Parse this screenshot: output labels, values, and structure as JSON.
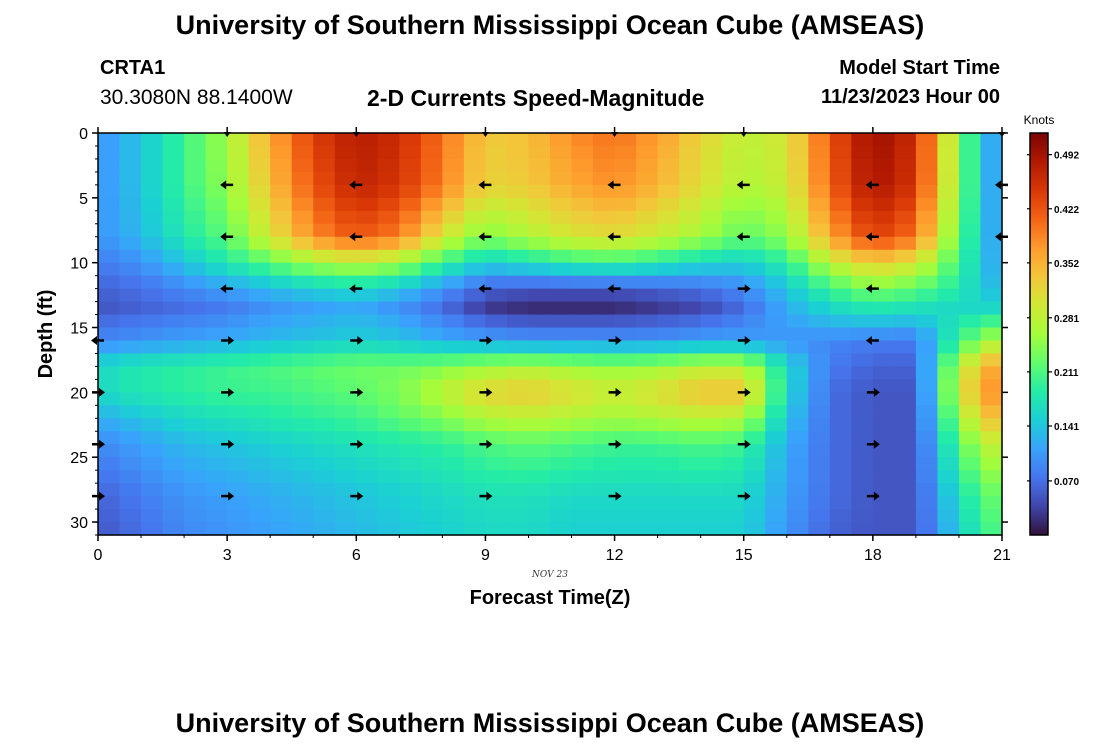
{
  "header": {
    "title": "University of Southern Mississippi Ocean Cube (AMSEAS)",
    "station": "CRTA1",
    "coordinates": "30.3080N  88.1400W",
    "subtitle": "2-D Currents Speed-Magnitude",
    "model_start_label": "Model Start Time",
    "model_start_value": "11/23/2023 Hour 00"
  },
  "footer": {
    "title": "University of Southern Mississippi Ocean Cube (AMSEAS)"
  },
  "chart_data": {
    "type": "heatmap",
    "title": "2-D Currents Speed-Magnitude",
    "xlabel": "Forecast Time(Z)",
    "ylabel": "Depth (ft)",
    "date_label": "NOV 23",
    "xlim": [
      0,
      21
    ],
    "ylim": [
      0,
      31
    ],
    "x_ticks": [
      0,
      3,
      6,
      9,
      12,
      15,
      18,
      21
    ],
    "y_ticks": [
      0,
      5,
      10,
      15,
      20,
      25,
      30
    ],
    "colorbar": {
      "label": "Knots",
      "min": 0.0,
      "max": 0.52,
      "ticks": [
        "0.492",
        "0.422",
        "0.352",
        "0.281",
        "0.211",
        "0.141",
        "0.070"
      ],
      "tick_values": [
        0.492,
        0.422,
        0.352,
        0.281,
        0.211,
        0.141,
        0.07
      ],
      "colors": [
        "#30123b",
        "#4145ab",
        "#4675ed",
        "#39a2fc",
        "#1bcfd4",
        "#24eca6",
        "#61fc6c",
        "#a4fc3b",
        "#d1e834",
        "#f3c63a",
        "#fe9b2d",
        "#f36315",
        "#d93806",
        "#b11901",
        "#7a0402"
      ]
    },
    "speed_field": {
      "note": "approximate current speed (knots) as function of forecast hour and depth (ft)",
      "hours": [
        0,
        1,
        2,
        3,
        4,
        5,
        6,
        7,
        8,
        9,
        10,
        11,
        12,
        13,
        14,
        15,
        16,
        17,
        18,
        19,
        20,
        21
      ],
      "depths": [
        0,
        4,
        8,
        10,
        12,
        13.5,
        16,
        18,
        20,
        22,
        24,
        28,
        31
      ],
      "speeds": [
        [
          0.1,
          0.14,
          0.2,
          0.26,
          0.36,
          0.44,
          0.48,
          0.46,
          0.4,
          0.33,
          0.34,
          0.38,
          0.4,
          0.37,
          0.32,
          0.28,
          0.3,
          0.42,
          0.5,
          0.46,
          0.24,
          0.08
        ],
        [
          0.1,
          0.14,
          0.2,
          0.25,
          0.34,
          0.42,
          0.47,
          0.45,
          0.39,
          0.32,
          0.33,
          0.36,
          0.38,
          0.35,
          0.31,
          0.27,
          0.29,
          0.41,
          0.49,
          0.45,
          0.24,
          0.08
        ],
        [
          0.1,
          0.13,
          0.18,
          0.22,
          0.3,
          0.38,
          0.42,
          0.39,
          0.3,
          0.24,
          0.27,
          0.3,
          0.31,
          0.29,
          0.26,
          0.22,
          0.25,
          0.36,
          0.44,
          0.4,
          0.22,
          0.09
        ],
        [
          0.08,
          0.1,
          0.14,
          0.18,
          0.22,
          0.26,
          0.28,
          0.26,
          0.2,
          0.15,
          0.17,
          0.19,
          0.2,
          0.18,
          0.16,
          0.15,
          0.19,
          0.28,
          0.33,
          0.3,
          0.2,
          0.1
        ],
        [
          0.06,
          0.07,
          0.09,
          0.11,
          0.13,
          0.15,
          0.16,
          0.14,
          0.1,
          0.06,
          0.05,
          0.05,
          0.05,
          0.06,
          0.07,
          0.09,
          0.14,
          0.2,
          0.24,
          0.22,
          0.18,
          0.12
        ],
        [
          0.05,
          0.06,
          0.07,
          0.08,
          0.1,
          0.11,
          0.12,
          0.1,
          0.07,
          0.03,
          0.02,
          0.02,
          0.02,
          0.03,
          0.04,
          0.07,
          0.12,
          0.16,
          0.18,
          0.17,
          0.16,
          0.16
        ],
        [
          0.09,
          0.1,
          0.11,
          0.12,
          0.13,
          0.14,
          0.15,
          0.14,
          0.12,
          0.11,
          0.1,
          0.1,
          0.1,
          0.1,
          0.11,
          0.11,
          0.1,
          0.09,
          0.08,
          0.08,
          0.2,
          0.28
        ],
        [
          0.16,
          0.18,
          0.19,
          0.2,
          0.21,
          0.22,
          0.23,
          0.23,
          0.24,
          0.26,
          0.27,
          0.26,
          0.25,
          0.26,
          0.28,
          0.28,
          0.16,
          0.08,
          0.06,
          0.06,
          0.28,
          0.38
        ],
        [
          0.16,
          0.18,
          0.19,
          0.2,
          0.2,
          0.21,
          0.22,
          0.24,
          0.28,
          0.32,
          0.33,
          0.31,
          0.29,
          0.31,
          0.34,
          0.34,
          0.16,
          0.07,
          0.05,
          0.05,
          0.3,
          0.4
        ],
        [
          0.12,
          0.14,
          0.16,
          0.17,
          0.18,
          0.19,
          0.2,
          0.22,
          0.24,
          0.27,
          0.28,
          0.27,
          0.26,
          0.27,
          0.28,
          0.27,
          0.14,
          0.07,
          0.05,
          0.05,
          0.26,
          0.36
        ],
        [
          0.09,
          0.11,
          0.13,
          0.14,
          0.15,
          0.16,
          0.17,
          0.18,
          0.19,
          0.21,
          0.22,
          0.21,
          0.2,
          0.2,
          0.21,
          0.2,
          0.12,
          0.07,
          0.05,
          0.05,
          0.22,
          0.3
        ],
        [
          0.06,
          0.08,
          0.1,
          0.11,
          0.12,
          0.13,
          0.14,
          0.15,
          0.16,
          0.17,
          0.17,
          0.16,
          0.16,
          0.16,
          0.16,
          0.16,
          0.11,
          0.07,
          0.05,
          0.05,
          0.17,
          0.24
        ],
        [
          0.05,
          0.07,
          0.09,
          0.1,
          0.11,
          0.12,
          0.13,
          0.14,
          0.15,
          0.16,
          0.16,
          0.15,
          0.15,
          0.15,
          0.15,
          0.15,
          0.1,
          0.06,
          0.05,
          0.05,
          0.15,
          0.22
        ]
      ]
    },
    "vectors": [
      {
        "hour": 3,
        "depth": 0,
        "dir": "down"
      },
      {
        "hour": 6,
        "depth": 0,
        "dir": "down"
      },
      {
        "hour": 9,
        "depth": 0,
        "dir": "down"
      },
      {
        "hour": 12,
        "depth": 0,
        "dir": "down"
      },
      {
        "hour": 15,
        "depth": 0,
        "dir": "down"
      },
      {
        "hour": 21,
        "depth": 0,
        "dir": "down"
      },
      {
        "hour": 3,
        "depth": 4,
        "dir": "left"
      },
      {
        "hour": 6,
        "depth": 4,
        "dir": "left"
      },
      {
        "hour": 9,
        "depth": 4,
        "dir": "left"
      },
      {
        "hour": 12,
        "depth": 4,
        "dir": "left"
      },
      {
        "hour": 15,
        "depth": 4,
        "dir": "left"
      },
      {
        "hour": 18,
        "depth": 4,
        "dir": "left"
      },
      {
        "hour": 21,
        "depth": 4,
        "dir": "left"
      },
      {
        "hour": 3,
        "depth": 8,
        "dir": "left"
      },
      {
        "hour": 6,
        "depth": 8,
        "dir": "left"
      },
      {
        "hour": 9,
        "depth": 8,
        "dir": "left"
      },
      {
        "hour": 12,
        "depth": 8,
        "dir": "left"
      },
      {
        "hour": 15,
        "depth": 8,
        "dir": "left"
      },
      {
        "hour": 18,
        "depth": 8,
        "dir": "left"
      },
      {
        "hour": 21,
        "depth": 8,
        "dir": "left"
      },
      {
        "hour": 3,
        "depth": 12,
        "dir": "left"
      },
      {
        "hour": 6,
        "depth": 12,
        "dir": "left"
      },
      {
        "hour": 9,
        "depth": 12,
        "dir": "left"
      },
      {
        "hour": 12,
        "depth": 12,
        "dir": "left"
      },
      {
        "hour": 15,
        "depth": 12,
        "dir": "right"
      },
      {
        "hour": 18,
        "depth": 12,
        "dir": "left"
      },
      {
        "hour": 0,
        "depth": 16,
        "dir": "left"
      },
      {
        "hour": 3,
        "depth": 16,
        "dir": "right"
      },
      {
        "hour": 6,
        "depth": 16,
        "dir": "right"
      },
      {
        "hour": 9,
        "depth": 16,
        "dir": "right"
      },
      {
        "hour": 12,
        "depth": 16,
        "dir": "right"
      },
      {
        "hour": 15,
        "depth": 16,
        "dir": "right"
      },
      {
        "hour": 18,
        "depth": 16,
        "dir": "left"
      },
      {
        "hour": 0,
        "depth": 20,
        "dir": "right"
      },
      {
        "hour": 3,
        "depth": 20,
        "dir": "right"
      },
      {
        "hour": 6,
        "depth": 20,
        "dir": "right"
      },
      {
        "hour": 9,
        "depth": 20,
        "dir": "right"
      },
      {
        "hour": 12,
        "depth": 20,
        "dir": "right"
      },
      {
        "hour": 15,
        "depth": 20,
        "dir": "right"
      },
      {
        "hour": 18,
        "depth": 20,
        "dir": "right"
      },
      {
        "hour": 0,
        "depth": 24,
        "dir": "right"
      },
      {
        "hour": 3,
        "depth": 24,
        "dir": "right"
      },
      {
        "hour": 6,
        "depth": 24,
        "dir": "right"
      },
      {
        "hour": 9,
        "depth": 24,
        "dir": "right"
      },
      {
        "hour": 12,
        "depth": 24,
        "dir": "right"
      },
      {
        "hour": 15,
        "depth": 24,
        "dir": "right"
      },
      {
        "hour": 18,
        "depth": 24,
        "dir": "right"
      },
      {
        "hour": 0,
        "depth": 28,
        "dir": "right"
      },
      {
        "hour": 3,
        "depth": 28,
        "dir": "right"
      },
      {
        "hour": 6,
        "depth": 28,
        "dir": "right"
      },
      {
        "hour": 9,
        "depth": 28,
        "dir": "right"
      },
      {
        "hour": 12,
        "depth": 28,
        "dir": "right"
      },
      {
        "hour": 15,
        "depth": 28,
        "dir": "right"
      },
      {
        "hour": 18,
        "depth": 28,
        "dir": "right"
      }
    ]
  }
}
